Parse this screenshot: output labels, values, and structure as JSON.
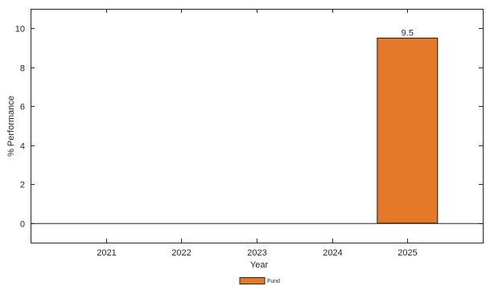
{
  "chart_data": {
    "type": "bar",
    "categories": [
      "2021",
      "2022",
      "2023",
      "2024",
      "2025"
    ],
    "series": [
      {
        "name": "Fund",
        "values": [
          0,
          0,
          0,
          0,
          9.5
        ],
        "color": "#E4792A"
      }
    ],
    "data_labels": [
      "",
      "",
      "",
      "",
      "9.5"
    ],
    "xlabel": "Year",
    "ylabel": "% Performance",
    "ylim": [
      -1,
      11
    ],
    "yticks": [
      "0",
      "2",
      "4",
      "6",
      "8",
      "10"
    ],
    "grid": false,
    "legend_position": "bottom-center"
  }
}
